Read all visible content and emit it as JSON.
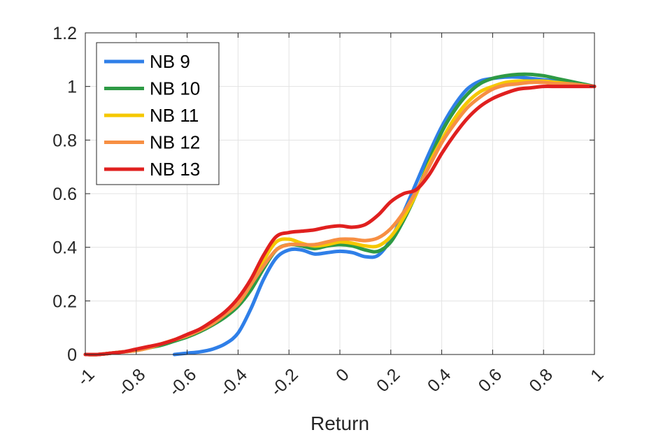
{
  "chart_data": {
    "type": "line",
    "title": "",
    "xlabel": "Return",
    "ylabel": "",
    "xlim": [
      -1,
      1
    ],
    "ylim": [
      0,
      1.2
    ],
    "grid": true,
    "legend_position": "top-left",
    "xticks": [
      "-1",
      "-0.8",
      "-0.6",
      "-0.4",
      "-0.2",
      "0",
      "0.2",
      "0.4",
      "0.6",
      "0.8",
      "1"
    ],
    "yticks": [
      "0",
      "0.2",
      "0.4",
      "0.6",
      "0.8",
      "1",
      "1.2"
    ],
    "series": [
      {
        "name": "NB 9",
        "color": "#2f7fe8",
        "x": [
          -0.65,
          -0.6,
          -0.55,
          -0.5,
          -0.45,
          -0.4,
          -0.35,
          -0.3,
          -0.25,
          -0.2,
          -0.15,
          -0.1,
          -0.05,
          0,
          0.05,
          0.1,
          0.15,
          0.2,
          0.25,
          0.3,
          0.35,
          0.4,
          0.45,
          0.5,
          0.55,
          0.6,
          0.65,
          0.7,
          0.75,
          0.8,
          0.85,
          0.9,
          0.95,
          1
        ],
        "y": [
          0,
          0.005,
          0.01,
          0.02,
          0.04,
          0.08,
          0.17,
          0.28,
          0.36,
          0.39,
          0.39,
          0.375,
          0.38,
          0.385,
          0.38,
          0.365,
          0.37,
          0.43,
          0.53,
          0.64,
          0.75,
          0.85,
          0.93,
          0.99,
          1.02,
          1.03,
          1.035,
          1.035,
          1.03,
          1.025,
          1.02,
          1.015,
          1.01,
          1.0
        ]
      },
      {
        "name": "NB 10",
        "color": "#2e9a45",
        "x": [
          -1,
          -0.95,
          -0.9,
          -0.85,
          -0.8,
          -0.75,
          -0.7,
          -0.65,
          -0.6,
          -0.55,
          -0.5,
          -0.45,
          -0.4,
          -0.35,
          -0.3,
          -0.25,
          -0.2,
          -0.15,
          -0.1,
          -0.05,
          0,
          0.05,
          0.1,
          0.15,
          0.2,
          0.25,
          0.3,
          0.35,
          0.4,
          0.45,
          0.5,
          0.55,
          0.6,
          0.65,
          0.7,
          0.75,
          0.8,
          0.85,
          0.9,
          0.95,
          1
        ],
        "y": [
          0,
          0.0,
          0.005,
          0.01,
          0.015,
          0.025,
          0.035,
          0.05,
          0.065,
          0.085,
          0.11,
          0.14,
          0.18,
          0.24,
          0.32,
          0.39,
          0.41,
          0.405,
          0.395,
          0.405,
          0.41,
          0.405,
          0.39,
          0.385,
          0.42,
          0.5,
          0.6,
          0.72,
          0.83,
          0.91,
          0.97,
          1.01,
          1.03,
          1.04,
          1.045,
          1.045,
          1.04,
          1.03,
          1.02,
          1.01,
          1.0
        ]
      },
      {
        "name": "NB 11",
        "color": "#f5c800",
        "x": [
          -1,
          -0.95,
          -0.9,
          -0.85,
          -0.8,
          -0.75,
          -0.7,
          -0.65,
          -0.6,
          -0.55,
          -0.5,
          -0.45,
          -0.4,
          -0.35,
          -0.3,
          -0.25,
          -0.2,
          -0.15,
          -0.1,
          -0.05,
          0,
          0.05,
          0.1,
          0.15,
          0.2,
          0.25,
          0.3,
          0.35,
          0.4,
          0.45,
          0.5,
          0.55,
          0.6,
          0.65,
          0.7,
          0.75,
          0.8,
          0.85,
          0.9,
          0.95,
          1
        ],
        "y": [
          0,
          0.0,
          0.005,
          0.01,
          0.015,
          0.025,
          0.04,
          0.055,
          0.07,
          0.09,
          0.115,
          0.15,
          0.19,
          0.26,
          0.35,
          0.42,
          0.43,
          0.415,
          0.405,
          0.41,
          0.42,
          0.415,
          0.405,
          0.405,
          0.44,
          0.51,
          0.6,
          0.71,
          0.8,
          0.88,
          0.94,
          0.98,
          1.0,
          1.015,
          1.02,
          1.02,
          1.02,
          1.015,
          1.01,
          1.005,
          1.0
        ]
      },
      {
        "name": "NB 12",
        "color": "#f78f43",
        "x": [
          -1,
          -0.95,
          -0.9,
          -0.85,
          -0.8,
          -0.75,
          -0.7,
          -0.65,
          -0.6,
          -0.55,
          -0.5,
          -0.45,
          -0.4,
          -0.35,
          -0.3,
          -0.25,
          -0.2,
          -0.15,
          -0.1,
          -0.05,
          0,
          0.05,
          0.1,
          0.15,
          0.2,
          0.25,
          0.3,
          0.35,
          0.4,
          0.45,
          0.5,
          0.55,
          0.6,
          0.65,
          0.7,
          0.75,
          0.8,
          0.85,
          0.9,
          0.95,
          1
        ],
        "y": [
          0,
          0.0,
          0.005,
          0.01,
          0.015,
          0.025,
          0.04,
          0.055,
          0.07,
          0.09,
          0.115,
          0.15,
          0.19,
          0.26,
          0.33,
          0.39,
          0.41,
          0.41,
          0.41,
          0.42,
          0.43,
          0.43,
          0.425,
          0.435,
          0.47,
          0.53,
          0.61,
          0.7,
          0.79,
          0.86,
          0.92,
          0.96,
          0.99,
          1.005,
          1.01,
          1.015,
          1.015,
          1.01,
          1.01,
          1.005,
          1.0
        ]
      },
      {
        "name": "NB 13",
        "color": "#e0201f",
        "x": [
          -1,
          -0.95,
          -0.9,
          -0.85,
          -0.8,
          -0.75,
          -0.7,
          -0.65,
          -0.6,
          -0.55,
          -0.5,
          -0.45,
          -0.4,
          -0.35,
          -0.3,
          -0.25,
          -0.2,
          -0.15,
          -0.1,
          -0.05,
          0,
          0.05,
          0.1,
          0.15,
          0.2,
          0.25,
          0.3,
          0.35,
          0.4,
          0.45,
          0.5,
          0.55,
          0.6,
          0.65,
          0.7,
          0.75,
          0.8,
          0.85,
          0.9,
          0.95,
          1
        ],
        "y": [
          0,
          0.0,
          0.005,
          0.01,
          0.02,
          0.03,
          0.04,
          0.055,
          0.075,
          0.095,
          0.125,
          0.16,
          0.21,
          0.28,
          0.37,
          0.44,
          0.455,
          0.46,
          0.465,
          0.475,
          0.48,
          0.475,
          0.485,
          0.52,
          0.57,
          0.6,
          0.615,
          0.67,
          0.75,
          0.82,
          0.88,
          0.925,
          0.955,
          0.975,
          0.99,
          0.995,
          1.0,
          1.0,
          1.0,
          1.0,
          1.0
        ]
      }
    ]
  }
}
